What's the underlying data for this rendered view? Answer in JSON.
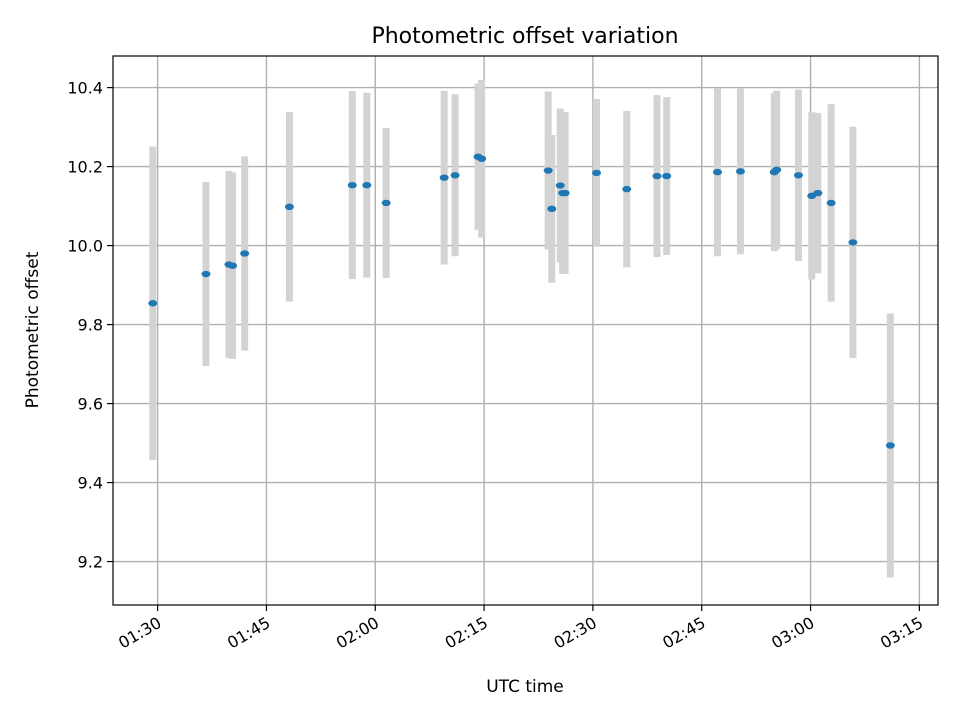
{
  "chart_data": {
    "type": "scatter",
    "title": "Photometric offset variation",
    "xlabel": "UTC time",
    "ylabel": "Photometric offset",
    "xlim": [
      "01:23:51",
      "03:17:34"
    ],
    "ylim": [
      9.09,
      10.48
    ],
    "xticks": [
      {
        "time": "01:30",
        "label": "01:30"
      },
      {
        "time": "01:45",
        "label": "01:45"
      },
      {
        "time": "02:00",
        "label": "02:00"
      },
      {
        "time": "02:15",
        "label": "02:15"
      },
      {
        "time": "02:30",
        "label": "02:30"
      },
      {
        "time": "02:45",
        "label": "02:45"
      },
      {
        "time": "03:00",
        "label": "03:00"
      },
      {
        "time": "03:15",
        "label": "03:15"
      }
    ],
    "yticks": [
      {
        "value": 9.2,
        "label": "9.2"
      },
      {
        "value": 9.4,
        "label": "9.4"
      },
      {
        "value": 9.6,
        "label": "9.6"
      },
      {
        "value": 9.8,
        "label": "9.8"
      },
      {
        "value": 10.0,
        "label": "10.0"
      },
      {
        "value": 10.2,
        "label": "10.2"
      },
      {
        "value": 10.4,
        "label": "10.4"
      }
    ],
    "grid": true,
    "marker_color": "#1f77b4",
    "errorbar_color": "#d3d3d3",
    "points": [
      {
        "time": "01:29:20",
        "y": 9.854,
        "err": 0.397
      },
      {
        "time": "01:36:40",
        "y": 9.928,
        "err": 0.233
      },
      {
        "time": "01:39:50",
        "y": 9.952,
        "err": 0.237
      },
      {
        "time": "01:40:20",
        "y": 9.949,
        "err": 0.236
      },
      {
        "time": "01:42:00",
        "y": 9.98,
        "err": 0.246
      },
      {
        "time": "01:48:10",
        "y": 10.098,
        "err": 0.24
      },
      {
        "time": "01:56:50",
        "y": 10.153,
        "err": 0.238
      },
      {
        "time": "01:58:50",
        "y": 10.153,
        "err": 0.234
      },
      {
        "time": "02:01:30",
        "y": 10.108,
        "err": 0.19
      },
      {
        "time": "02:09:30",
        "y": 10.172,
        "err": 0.22
      },
      {
        "time": "02:11:00",
        "y": 10.178,
        "err": 0.205
      },
      {
        "time": "02:14:10",
        "y": 10.225,
        "err": 0.185
      },
      {
        "time": "02:14:40",
        "y": 10.22,
        "err": 0.2
      },
      {
        "time": "02:23:50",
        "y": 10.19,
        "err": 0.2
      },
      {
        "time": "02:24:20",
        "y": 10.093,
        "err": 0.187
      },
      {
        "time": "02:25:30",
        "y": 10.152,
        "err": 0.195
      },
      {
        "time": "02:25:50",
        "y": 10.133,
        "err": 0.205
      },
      {
        "time": "02:26:10",
        "y": 10.133,
        "err": 0.205
      },
      {
        "time": "02:30:30",
        "y": 10.184,
        "err": 0.187
      },
      {
        "time": "02:34:40",
        "y": 10.143,
        "err": 0.198
      },
      {
        "time": "02:38:50",
        "y": 10.176,
        "err": 0.205
      },
      {
        "time": "02:40:10",
        "y": 10.176,
        "err": 0.2
      },
      {
        "time": "02:47:10",
        "y": 10.186,
        "err": 0.213
      },
      {
        "time": "02:50:20",
        "y": 10.188,
        "err": 0.21
      },
      {
        "time": "02:55:00",
        "y": 10.186,
        "err": 0.2
      },
      {
        "time": "02:55:20",
        "y": 10.192,
        "err": 0.2
      },
      {
        "time": "02:58:20",
        "y": 10.178,
        "err": 0.217
      },
      {
        "time": "03:00:10",
        "y": 10.126,
        "err": 0.212
      },
      {
        "time": "03:01:00",
        "y": 10.133,
        "err": 0.203
      },
      {
        "time": "03:02:50",
        "y": 10.108,
        "err": 0.25
      },
      {
        "time": "03:05:50",
        "y": 10.008,
        "err": 0.293
      },
      {
        "time": "03:11:00",
        "y": 9.494,
        "err": 0.334
      }
    ]
  }
}
